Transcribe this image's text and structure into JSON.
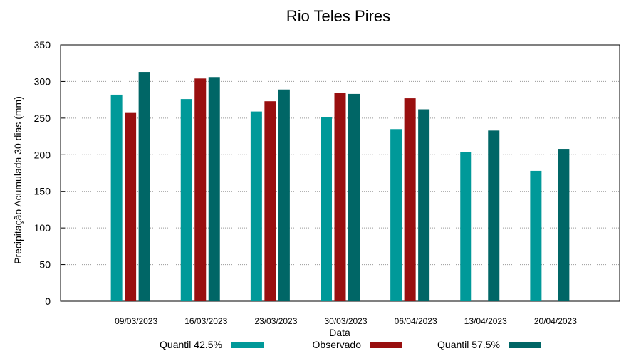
{
  "chart_data": {
    "type": "bar",
    "title": "Rio Teles Pires",
    "x_label": "Data",
    "y_label": "Precipitação Acumulada 30 dias (mm)",
    "categories": [
      "09/03/2023",
      "16/03/2023",
      "23/03/2023",
      "30/03/2023",
      "06/04/2023",
      "13/04/2023",
      "20/04/2023"
    ],
    "series": [
      {
        "name": "Quantil 42.5%",
        "color": "#009999",
        "values": [
          282,
          276,
          259,
          251,
          235,
          204,
          178
        ]
      },
      {
        "name": "Observado",
        "color": "#990f0f",
        "values": [
          257,
          304,
          273,
          284,
          277,
          null,
          null
        ]
      },
      {
        "name": "Quantil 57.5%",
        "color": "#006666",
        "values": [
          313,
          306,
          289,
          283,
          262,
          233,
          208
        ]
      }
    ],
    "ylim": [
      0,
      350
    ],
    "yticks": [
      0,
      50,
      100,
      150,
      200,
      250,
      300,
      350
    ],
    "grid": true
  }
}
